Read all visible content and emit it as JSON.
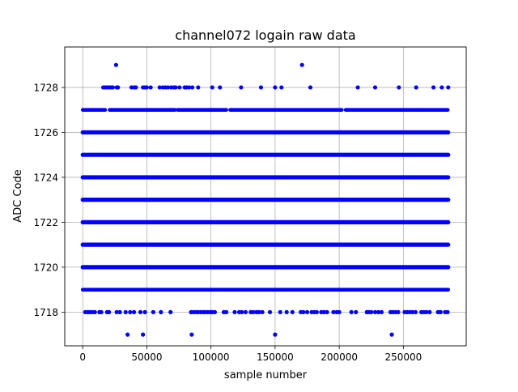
{
  "chart_data": {
    "type": "scatter",
    "title": "channel072 logain raw data",
    "xlabel": "sample number",
    "ylabel": "ADC Code",
    "xlim": [
      -14000,
      299000
    ],
    "ylim": [
      1716.5,
      1729.8
    ],
    "xticks": [
      0,
      50000,
      100000,
      150000,
      200000,
      250000
    ],
    "xtick_labels": [
      "0",
      "50000",
      "100000",
      "150000",
      "200000",
      "250000"
    ],
    "yticks": [
      1718,
      1720,
      1722,
      1724,
      1726,
      1728
    ],
    "ytick_labels": [
      "1718",
      "1720",
      "1722",
      "1724",
      "1726",
      "1728"
    ],
    "grid": true,
    "marker_color": "#0000ff",
    "sample_range": [
      0,
      285000
    ],
    "dense_levels": [
      1720,
      1721,
      1722,
      1723,
      1724,
      1725,
      1726
    ],
    "band_levels": [
      {
        "y": 1719,
        "segments": [
          [
            0,
            285000
          ]
        ]
      },
      {
        "y": 1727,
        "segments": [
          [
            0,
            18000
          ],
          [
            21000,
            72000
          ],
          [
            74000,
            112000
          ],
          [
            115000,
            202000
          ],
          [
            205000,
            285000
          ]
        ]
      }
    ],
    "sparse_points": [
      {
        "y": 1729,
        "x": [
          26000,
          171000
        ]
      },
      {
        "y": 1728,
        "x": [
          16000,
          17500,
          19000,
          20500,
          22000,
          23500,
          26500,
          27500,
          38000,
          40000,
          41500,
          47000,
          48500,
          50000,
          53000,
          60000,
          62500,
          64500,
          66500,
          69000,
          71000,
          72500,
          75500,
          79500,
          81000,
          83000,
          85500,
          90000,
          101000,
          107000,
          123500,
          139000,
          150000,
          155000,
          177500,
          214500,
          228000,
          246500,
          260000,
          273500,
          280000,
          285000
        ]
      },
      {
        "y": 1718,
        "x": [
          2000,
          4000,
          5500,
          7500,
          9500,
          13000,
          14500,
          19000,
          20500,
          26500,
          29000,
          33500,
          37000,
          40000,
          45000,
          48500,
          55000,
          61000,
          68500,
          84500,
          86500,
          88500,
          90000,
          92000,
          94000,
          95500,
          97500,
          99500,
          101000,
          103000,
          110000,
          112000,
          118500,
          122000,
          124000,
          127000,
          131000,
          133000,
          135500,
          137500,
          140000,
          146000,
          154000,
          159000,
          163500,
          170000,
          172000,
          175000,
          178500,
          180500,
          182500,
          186000,
          188000,
          190500,
          195500,
          198000,
          200000,
          209500,
          213000,
          221500,
          223000,
          225000,
          228000,
          230500,
          233000,
          240000,
          242000,
          244000,
          246000,
          251000,
          253000,
          255000,
          257000,
          259500,
          264000,
          266000,
          268000,
          270500,
          277000,
          279000,
          282500,
          284500
        ]
      },
      {
        "y": 1717,
        "x": [
          35000,
          47000,
          85000,
          150000,
          241000
        ]
      }
    ]
  }
}
